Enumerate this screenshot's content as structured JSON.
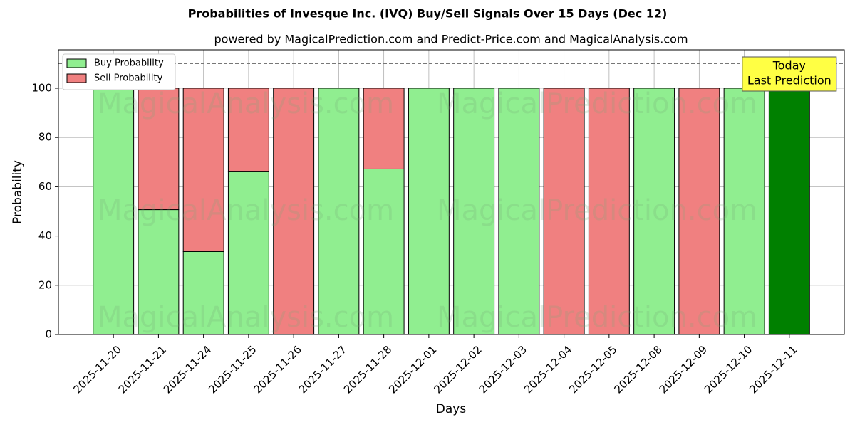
{
  "chart_data": {
    "type": "stacked-bar",
    "title": "Probabilities of Invesque Inc. (IVQ) Buy/Sell Signals Over 15 Days (Dec 12)",
    "subtitle": "powered by MagicalPrediction.com and Predict-Price.com and MagicalAnalysis.com",
    "x_label": "Days",
    "y_label": "Probability",
    "categories": [
      "2025-11-20",
      "2025-11-21",
      "2025-11-24",
      "2025-11-25",
      "2025-11-26",
      "2025-11-27",
      "2025-11-28",
      "2025-12-01",
      "2025-12-02",
      "2025-12-03",
      "2025-12-04",
      "2025-12-05",
      "2025-12-08",
      "2025-12-09",
      "2025-12-10",
      "2025-12-11"
    ],
    "series": [
      {
        "name": "Buy Probability",
        "color": "#90ee90",
        "values": [
          100,
          50.7,
          33.7,
          66.3,
          0,
          100,
          67.2,
          100,
          100,
          100,
          0,
          0,
          100,
          0,
          100,
          100
        ]
      },
      {
        "name": "Sell Probability",
        "color": "#f08080",
        "values": [
          0,
          49.3,
          66.3,
          33.7,
          100,
          0,
          32.8,
          0,
          0,
          0,
          100,
          100,
          0,
          100,
          0,
          0
        ]
      }
    ],
    "highlight_color": "#008000",
    "annotation": [
      "Today",
      "Last Prediction"
    ],
    "reference_line": 110,
    "watermarks": [
      "MagicalAnalysis.com",
      "MagicalPrediction.com"
    ],
    "ylim": [
      0,
      115.6
    ],
    "yticks": [
      0,
      20,
      40,
      60,
      80,
      100
    ],
    "grid": true,
    "legend": "upper-left"
  }
}
